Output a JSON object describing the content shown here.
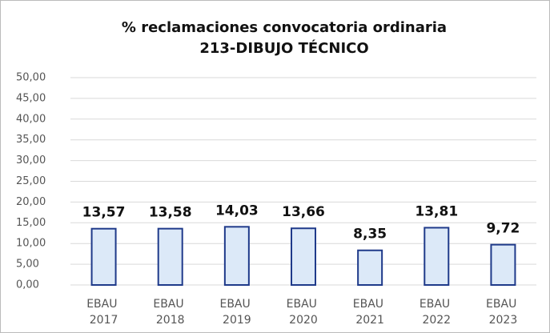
{
  "chart_data": {
    "type": "bar",
    "title": "% reclamaciones convocatoria ordinaria",
    "subtitle": "213-DIBUJO TÉCNICO",
    "categories": [
      "EBAU 2017",
      "EBAU 2018",
      "EBAU 2019",
      "EBAU 2020",
      "EBAU 2021",
      "EBAU 2022",
      "EBAU 2023"
    ],
    "values": [
      13.57,
      13.58,
      14.03,
      13.66,
      8.35,
      13.81,
      9.72
    ],
    "value_labels": [
      "13,57",
      "13,58",
      "14,03",
      "13,66",
      "8,35",
      "13,81",
      "9,72"
    ],
    "color": "#dce9f8",
    "edge_color": "#1f3a8a",
    "ylim": [
      0,
      50
    ],
    "yticks": [
      {
        "value": 0,
        "label": "0,00"
      },
      {
        "value": 5,
        "label": "5,00"
      },
      {
        "value": 10,
        "label": "10,00"
      },
      {
        "value": 15,
        "label": "15,00"
      },
      {
        "value": 20,
        "label": "20,00"
      },
      {
        "value": 25,
        "label": "25,00"
      },
      {
        "value": 30,
        "label": "30,00"
      },
      {
        "value": 35,
        "label": "35,00"
      },
      {
        "value": 40,
        "label": "40,00"
      },
      {
        "value": 45,
        "label": "45,00"
      },
      {
        "value": 50,
        "label": "50,00"
      }
    ],
    "grid": true
  }
}
